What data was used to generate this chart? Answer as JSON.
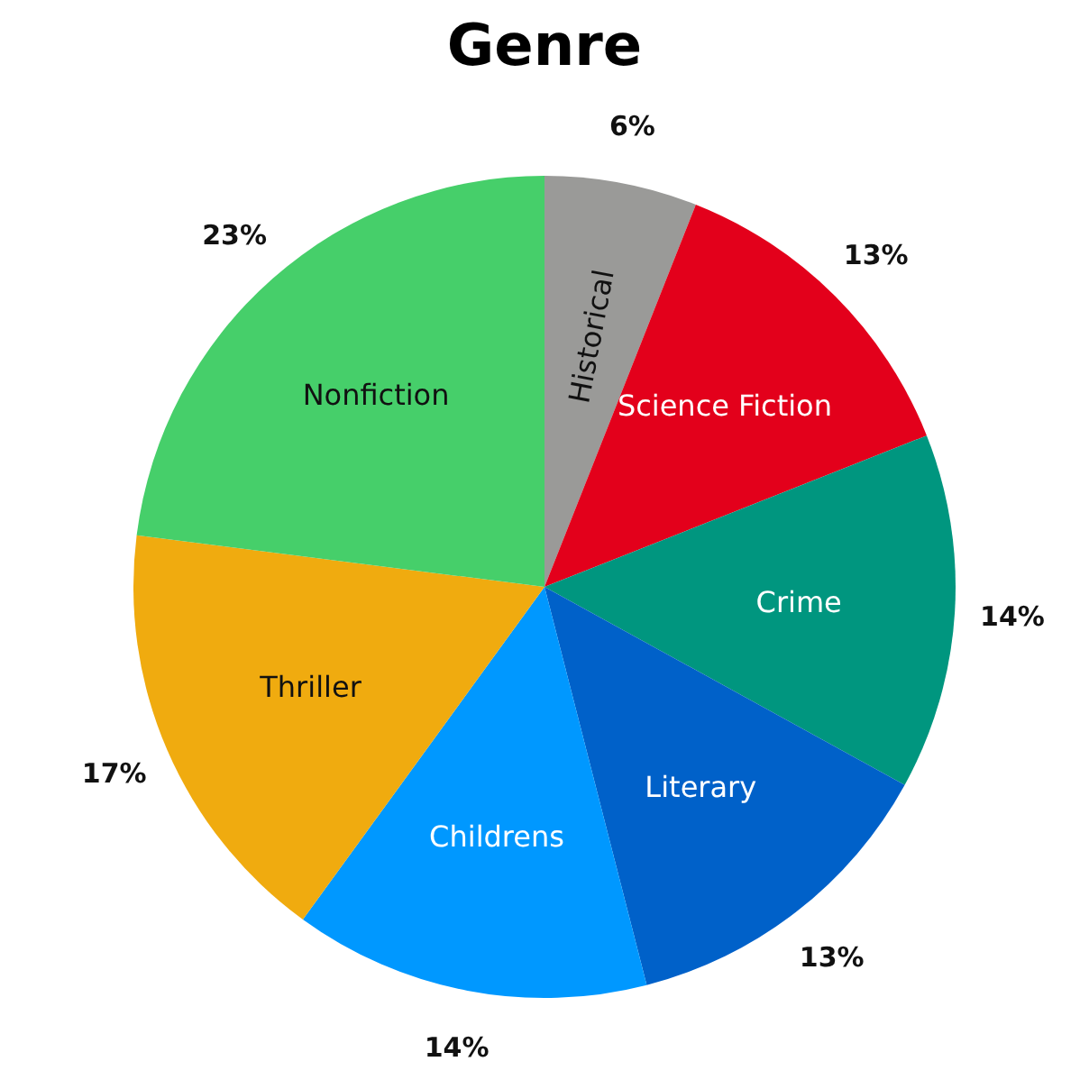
{
  "chart_data": {
    "type": "pie",
    "title": "Genre",
    "categories": [
      "Historical",
      "Science Fiction",
      "Crime",
      "Literary",
      "Childrens",
      "Thriller",
      "Nonfiction"
    ],
    "values": [
      6,
      13,
      14,
      13,
      14,
      17,
      23
    ],
    "value_labels": [
      "6%",
      "13%",
      "14%",
      "13%",
      "14%",
      "17%",
      "23%"
    ],
    "colors": [
      "#9a9a98",
      "#e3001b",
      "#00967f",
      "#0061c9",
      "#0098ff",
      "#f0ab0f",
      "#46cf6a"
    ],
    "legend": false
  }
}
